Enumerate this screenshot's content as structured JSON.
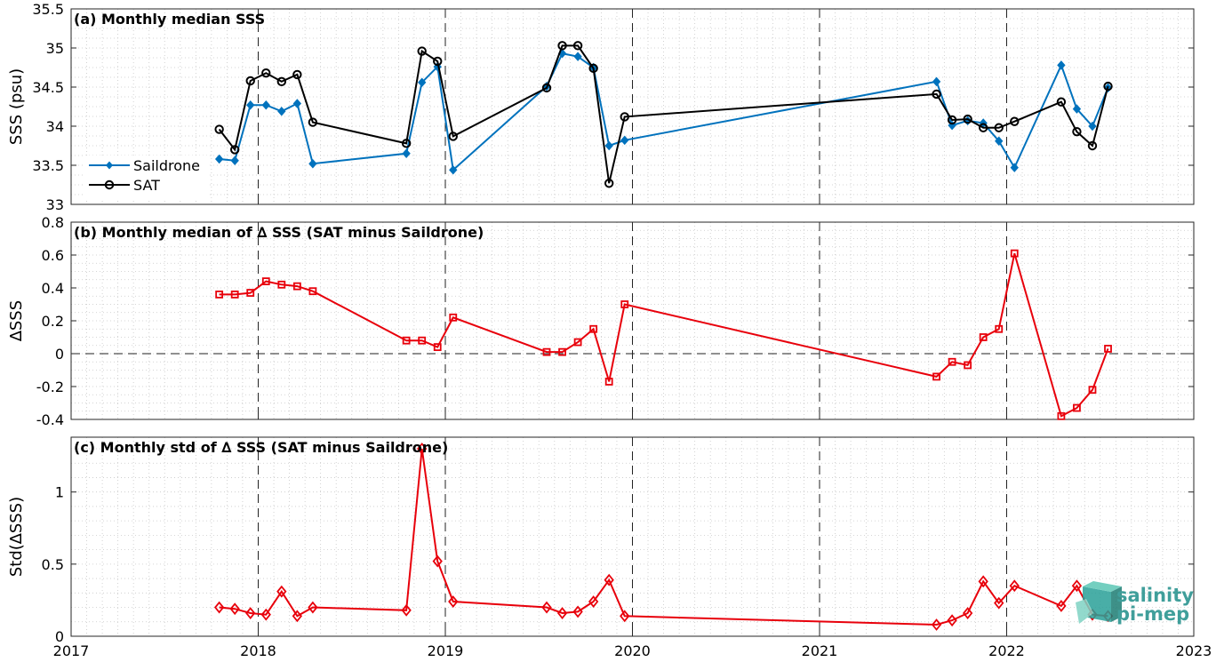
{
  "chart_data": [
    {
      "type": "line",
      "title": "(a) Monthly median SSS",
      "xlabel": "",
      "ylabel": "SSS (psu)",
      "xlim": [
        2017,
        2023
      ],
      "ylim": [
        33,
        35.5
      ],
      "yticks": [
        33,
        33.5,
        34,
        34.5,
        35,
        35.5
      ],
      "ytick_labels": [
        "33",
        "33.5",
        "34",
        "34.5",
        "35",
        "35.5"
      ],
      "grid": "minor dotted",
      "legend": "left",
      "series": [
        {
          "name": "Saildrone",
          "color": "#0072bd",
          "marker": "diamond-filled",
          "x": [
            "2017-10",
            "2017-11",
            "2017-12",
            "2018-01",
            "2018-02",
            "2018-03",
            "2018-04",
            "2018-10",
            "2018-11",
            "2018-12",
            "2019-01",
            "2019-07",
            "2019-08",
            "2019-09",
            "2019-10",
            "2019-11",
            "2019-12",
            "2021-08",
            "2021-09",
            "2021-10",
            "2021-11",
            "2021-12",
            "2022-01",
            "2022-04",
            "2022-05",
            "2022-06",
            "2022-07"
          ],
          "y": [
            33.58,
            33.56,
            34.27,
            34.27,
            34.19,
            34.29,
            33.52,
            33.65,
            34.56,
            34.76,
            33.44,
            34.51,
            34.93,
            34.89,
            34.75,
            33.75,
            33.82,
            34.57,
            34.01,
            34.07,
            34.04,
            33.81,
            33.47,
            34.78,
            34.22,
            34.0,
            34.49
          ]
        },
        {
          "name": "SAT",
          "color": "#000000",
          "marker": "circle-open",
          "x": [
            "2017-10",
            "2017-11",
            "2017-12",
            "2018-01",
            "2018-02",
            "2018-03",
            "2018-04",
            "2018-10",
            "2018-11",
            "2018-12",
            "2019-01",
            "2019-07",
            "2019-08",
            "2019-09",
            "2019-10",
            "2019-11",
            "2019-12",
            "2021-08",
            "2021-09",
            "2021-10",
            "2021-11",
            "2021-12",
            "2022-01",
            "2022-04",
            "2022-05",
            "2022-06",
            "2022-07"
          ],
          "y": [
            33.96,
            33.7,
            34.58,
            34.68,
            34.57,
            34.66,
            34.05,
            33.78,
            34.96,
            34.83,
            33.87,
            34.49,
            35.03,
            35.03,
            34.74,
            33.27,
            34.12,
            34.41,
            34.08,
            34.09,
            33.98,
            33.98,
            34.06,
            34.31,
            33.93,
            33.75,
            34.51
          ]
        }
      ]
    },
    {
      "type": "line",
      "title": "(b) Monthly median of ∆ SSS (SAT minus Saildrone)",
      "xlabel": "",
      "ylabel": "∆SSS",
      "xlim": [
        2017,
        2023
      ],
      "ylim": [
        -0.4,
        0.8
      ],
      "yticks": [
        -0.4,
        -0.2,
        0,
        0.2,
        0.4,
        0.6,
        0.8
      ],
      "ytick_labels": [
        "-0.4",
        "-0.2",
        "0",
        "0.2",
        "0.4",
        "0.6",
        "0.8"
      ],
      "grid": "minor dotted",
      "reference_line": 0,
      "series": [
        {
          "color": "#e8000b",
          "marker": "square-open",
          "x": [
            "2017-10",
            "2017-11",
            "2017-12",
            "2018-01",
            "2018-02",
            "2018-03",
            "2018-04",
            "2018-10",
            "2018-11",
            "2018-12",
            "2019-01",
            "2019-07",
            "2019-08",
            "2019-09",
            "2019-10",
            "2019-11",
            "2019-12",
            "2021-08",
            "2021-09",
            "2021-10",
            "2021-11",
            "2021-12",
            "2022-01",
            "2022-04",
            "2022-05",
            "2022-06",
            "2022-07"
          ],
          "y": [
            0.36,
            0.36,
            0.37,
            0.44,
            0.42,
            0.41,
            0.38,
            0.08,
            0.08,
            0.04,
            0.22,
            0.01,
            0.01,
            0.07,
            0.15,
            -0.17,
            0.3,
            -0.14,
            -0.05,
            -0.07,
            0.1,
            0.15,
            0.61,
            -0.38,
            -0.33,
            -0.22,
            0.03
          ]
        }
      ]
    },
    {
      "type": "line",
      "title": "(c) Monthly std of ∆ SSS (SAT minus Saildrone)",
      "xlabel": "",
      "ylabel": "Std(∆SSS)",
      "xlim": [
        2017,
        2023
      ],
      "ylim": [
        0,
        1.38
      ],
      "yticks": [
        0,
        0.5,
        1
      ],
      "ytick_labels": [
        "0",
        "0.5",
        "1"
      ],
      "xticks": [
        2017,
        2018,
        2019,
        2020,
        2021,
        2022,
        2023
      ],
      "xtick_labels": [
        "2017",
        "2018",
        "2019",
        "2020",
        "2021",
        "2022",
        "2023"
      ],
      "grid": "minor dotted",
      "series": [
        {
          "color": "#e8000b",
          "marker": "diamond-open",
          "x": [
            "2017-10",
            "2017-11",
            "2017-12",
            "2018-01",
            "2018-02",
            "2018-03",
            "2018-04",
            "2018-10",
            "2018-11",
            "2018-12",
            "2019-01",
            "2019-07",
            "2019-08",
            "2019-09",
            "2019-10",
            "2019-11",
            "2019-12",
            "2021-08",
            "2021-09",
            "2021-10",
            "2021-11",
            "2021-12",
            "2022-01",
            "2022-04",
            "2022-05",
            "2022-06",
            "2022-07"
          ],
          "y": [
            0.2,
            0.19,
            0.16,
            0.15,
            0.31,
            0.14,
            0.2,
            0.18,
            1.3,
            0.52,
            0.24,
            0.2,
            0.16,
            0.17,
            0.24,
            0.39,
            0.14,
            0.08,
            0.11,
            0.16,
            0.38,
            0.23,
            0.35,
            0.21,
            0.35,
            0.15,
            0.14
          ]
        }
      ]
    }
  ],
  "year_lines": [
    2018,
    2019,
    2020,
    2021,
    2022
  ],
  "logo": {
    "line1": "salinity",
    "line2": "pi-mep"
  }
}
